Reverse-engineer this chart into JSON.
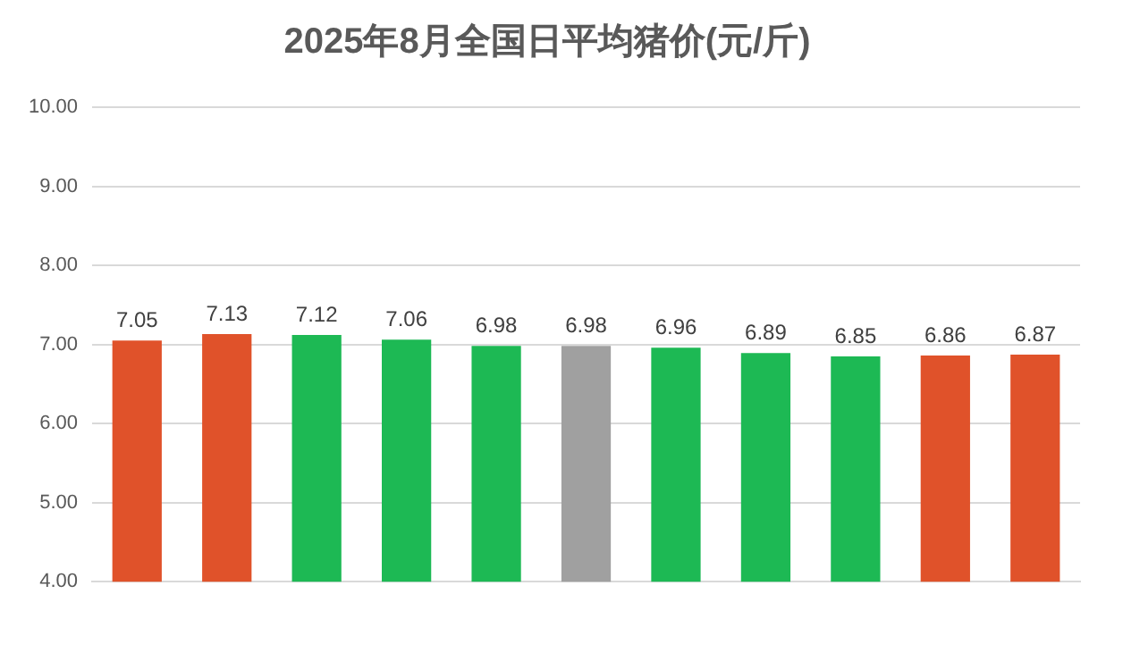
{
  "chart_data": {
    "type": "bar",
    "title": "2025年8月全国日平均猪价(元/斤)",
    "categories": [
      null,
      null,
      null,
      null,
      null,
      null,
      null,
      null,
      null,
      null,
      null
    ],
    "values": [
      7.05,
      7.13,
      7.12,
      7.06,
      6.98,
      6.98,
      6.96,
      6.89,
      6.85,
      6.86,
      6.87
    ],
    "colors": [
      "#e0522a",
      "#e0522a",
      "#1db954",
      "#1db954",
      "#1db954",
      "#a0a0a0",
      "#1db954",
      "#1db954",
      "#1db954",
      "#e0522a",
      "#e0522a"
    ],
    "ylim": [
      4,
      10
    ],
    "yticks": [
      {
        "value": 4,
        "label": "4.00"
      },
      {
        "value": 5,
        "label": "5.00"
      },
      {
        "value": 6,
        "label": "6.00"
      },
      {
        "value": 7,
        "label": "7.00"
      },
      {
        "value": 8,
        "label": "8.00"
      },
      {
        "value": 9,
        "label": "9.00"
      },
      {
        "value": 10,
        "label": "10.00"
      }
    ],
    "grid": "y",
    "data_labels": true,
    "legend": false
  }
}
